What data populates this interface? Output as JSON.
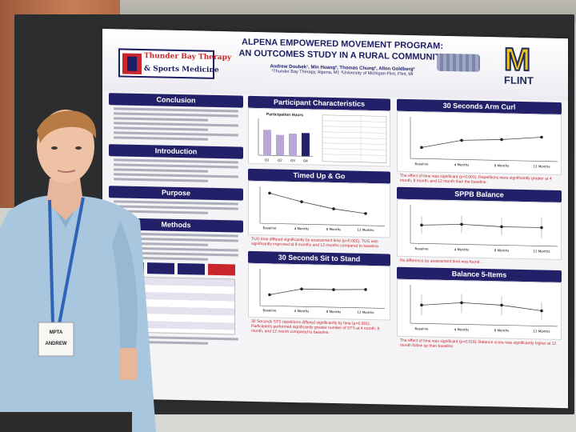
{
  "poster": {
    "title_line1": "ALPENA EMPOWERED MOVEMENT PROGRAM:",
    "title_line2": "AN OUTCOMES STUDY IN A RURAL COMMUNITY",
    "authors": "Andrew Doubek¹, Min Huang², Thomas Chung², Allon Goldberg²",
    "affiliations": "¹Thunder Bay Therapy, Alpena, MI; ²University of Michigan-Flint, Flint, MI",
    "logo_line1": "Thunder Bay Therapy",
    "logo_line2": "& Sports Medicine",
    "university_mark": "M",
    "university_name": "FLINT"
  },
  "sections": {
    "conclusion": "Conclusion",
    "introduction": "Introduction",
    "purpose": "Purpose",
    "methods": "Methods",
    "participant_characteristics": "Participant Characteristics",
    "timed_up_go": "Timed Up & Go",
    "sit_to_stand": "30 Seconds Sit to Stand",
    "arm_curl": "30 Seconds Arm Curl",
    "sppb": "SPPB Balance",
    "balance5": "Balance 5-Items"
  },
  "notes": {
    "arm_curl": "The effect of time was significant (p<0.001). Repetitions were significantly greater at 4 month, 8 month, and 12 month than the baseline.",
    "sppb": "No difference by assessment time was found.",
    "balance5": "The effect of time was significant (p=0.019). Balance score was significantly higher at 12 month follow up than baseline.",
    "tug": "TUG time differed significantly by assessment time (p=0.002). TUG was significantly improved at 8 months and 12 months compared to baseline.",
    "sts": "30 Seconds STS repetitions differed significantly by time (p<0.001). Participants performed significantly greater number of STS at 4 month, 8 month, and 12 month compared to baseline."
  },
  "chart_labels": {
    "participation_hours": "Participation Hours",
    "x_ticks": [
      "Baseline",
      "4 Months",
      "8 Months",
      "12 Months"
    ],
    "q_ticks": [
      "Q1",
      "Q2",
      "Q3",
      "Q4"
    ]
  },
  "badge": {
    "event": "MPTA",
    "name": "ANDREW"
  },
  "colors": {
    "navy": "#23206a",
    "maize": "#f2c41b",
    "red": "#c8252c"
  }
}
